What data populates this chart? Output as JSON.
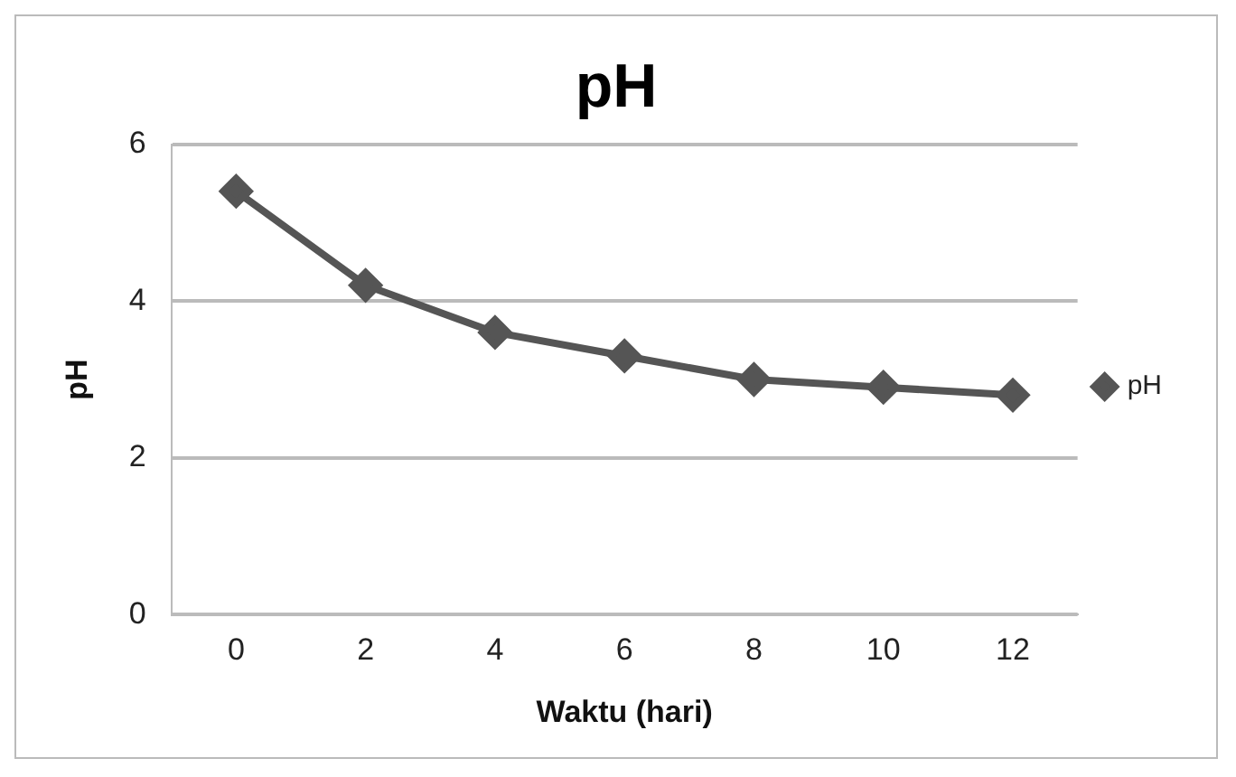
{
  "chart_data": {
    "type": "line",
    "title": "pH",
    "xlabel": "Waktu (hari)",
    "ylabel": "pH",
    "categories": [
      "0",
      "2",
      "4",
      "6",
      "8",
      "10",
      "12"
    ],
    "series": [
      {
        "name": "pH",
        "color": "#555555",
        "values": [
          5.4,
          4.2,
          3.6,
          3.3,
          3.0,
          2.9,
          2.8
        ]
      }
    ],
    "ylim": [
      0,
      6
    ],
    "yticks": [
      0,
      2,
      4,
      6
    ],
    "grid": "y",
    "legend": "right",
    "marker": "diamond",
    "line_style": "solid"
  }
}
